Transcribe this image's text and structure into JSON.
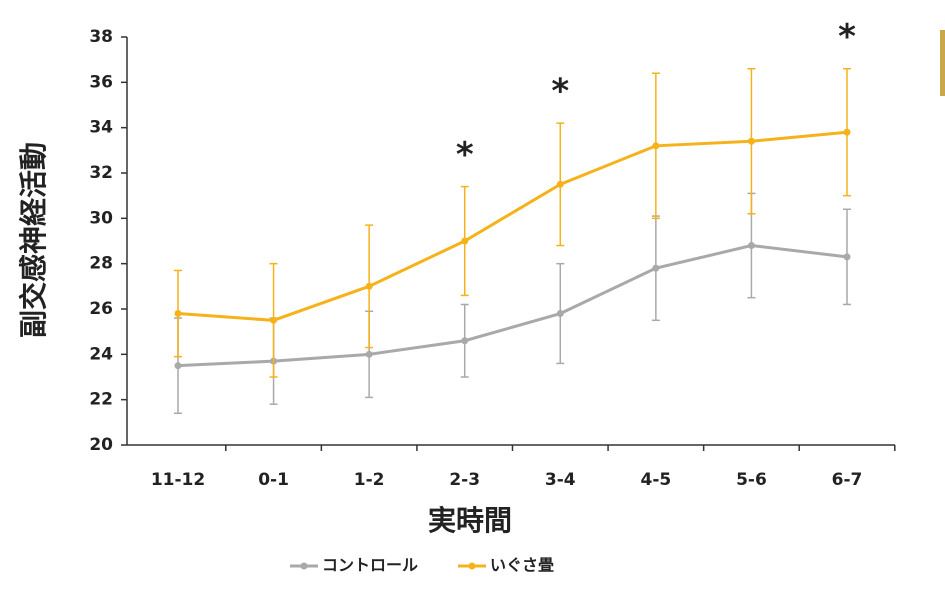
{
  "chart_data": {
    "type": "line",
    "y_label": "副交感神経活動",
    "x_label": "実時間",
    "categories": [
      "11-12",
      "0-1",
      "1-2",
      "2-3",
      "3-4",
      "4-5",
      "5-6",
      "6-7"
    ],
    "series": [
      {
        "name": "コントロール",
        "color": "#a9a9a9",
        "values": [
          23.5,
          23.7,
          24.0,
          24.6,
          25.8,
          27.8,
          28.8,
          28.3
        ],
        "errors": [
          2.1,
          1.9,
          1.9,
          1.6,
          2.2,
          2.3,
          2.3,
          2.1
        ]
      },
      {
        "name": "いぐさ畳",
        "color": "#f5b21b",
        "values": [
          25.8,
          25.5,
          27.0,
          29.0,
          31.5,
          33.2,
          33.4,
          33.8
        ],
        "errors": [
          1.9,
          2.5,
          2.7,
          2.4,
          2.7,
          3.2,
          3.2,
          2.8
        ]
      }
    ],
    "annotations": [
      {
        "text": "*",
        "category": "2-3"
      },
      {
        "text": "*",
        "category": "3-4"
      },
      {
        "text": "*",
        "category": "6-7"
      }
    ],
    "ylim": [
      20,
      38
    ],
    "yticks": [
      20,
      22,
      24,
      26,
      28,
      30,
      32,
      34,
      36,
      38
    ]
  }
}
